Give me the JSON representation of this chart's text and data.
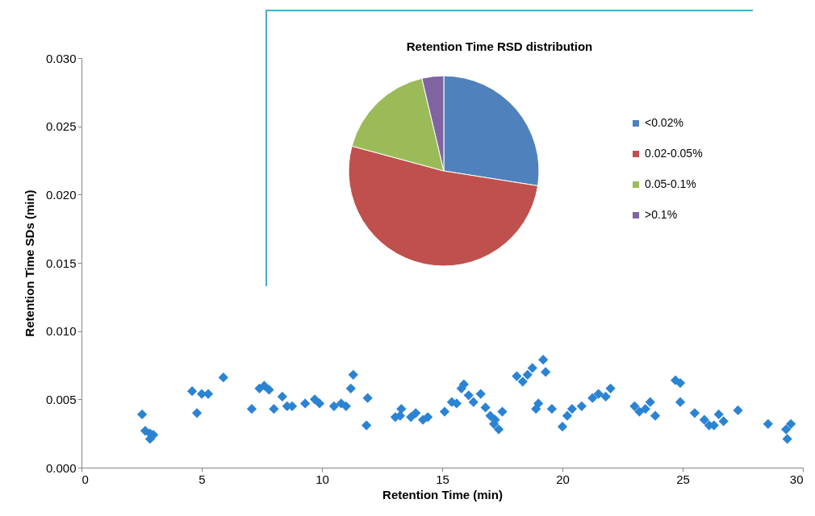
{
  "chart_data": [
    {
      "type": "scatter",
      "xlabel": "Retention Time (min)",
      "ylabel": "Retention Time SDs (min)",
      "marker": "diamond",
      "grid": false,
      "legend": false,
      "xlim": [
        0,
        30
      ],
      "xticks": [
        0,
        5,
        10,
        15,
        20,
        25,
        30
      ],
      "ylim": [
        0,
        0.03
      ],
      "yticks": [
        {
          "value": 0,
          "label": "0.000"
        },
        {
          "value": 0.005,
          "label": "0.005"
        },
        {
          "value": 0.01,
          "label": "0.010"
        },
        {
          "value": 0.015,
          "label": "0.015"
        },
        {
          "value": 0.02,
          "label": "0.020"
        },
        {
          "value": 0.025,
          "label": "0.025"
        },
        {
          "value": 0.03,
          "label": "0.030"
        }
      ],
      "series": [
        {
          "color": "#2b83d3",
          "x": [
            2.52,
            2.65,
            2.85,
            2.85,
            2.99,
            4.6,
            4.8,
            5.0,
            5.27,
            5.9,
            7.08,
            7.4,
            7.6,
            7.8,
            8.0,
            8.35,
            8.55,
            8.76,
            9.3,
            9.7,
            9.9,
            10.5,
            10.8,
            11.0,
            11.2,
            11.3,
            11.85,
            11.9,
            13.05,
            13.25,
            13.3,
            13.7,
            13.9,
            14.2,
            14.4,
            15.1,
            15.4,
            15.6,
            15.8,
            15.9,
            16.1,
            16.3,
            16.6,
            16.8,
            17.0,
            17.15,
            17.2,
            17.35,
            17.5,
            18.1,
            18.35,
            18.55,
            18.75,
            18.9,
            19.0,
            19.2,
            19.3,
            19.56,
            20.0,
            20.2,
            20.4,
            20.8,
            21.25,
            21.5,
            21.8,
            22.0,
            23.0,
            23.2,
            23.45,
            23.65,
            23.86,
            24.7,
            24.9,
            24.9,
            25.5,
            25.9,
            26.1,
            26.3,
            26.5,
            26.7,
            27.3,
            28.55,
            29.3,
            29.35,
            29.5
          ],
          "values": [
            0.0039,
            0.0027,
            0.0025,
            0.0021,
            0.0024,
            0.0056,
            0.004,
            0.0054,
            0.0054,
            0.0066,
            0.0043,
            0.0058,
            0.006,
            0.0057,
            0.0043,
            0.0052,
            0.0045,
            0.0045,
            0.0047,
            0.005,
            0.0047,
            0.0045,
            0.0047,
            0.0045,
            0.0058,
            0.0068,
            0.0031,
            0.0051,
            0.0037,
            0.0038,
            0.0043,
            0.0037,
            0.004,
            0.0035,
            0.0037,
            0.0041,
            0.0048,
            0.0047,
            0.0058,
            0.0061,
            0.0053,
            0.0048,
            0.0054,
            0.0044,
            0.0038,
            0.0032,
            0.0035,
            0.0028,
            0.0041,
            0.0067,
            0.0063,
            0.0068,
            0.0073,
            0.0043,
            0.0047,
            0.0079,
            0.007,
            0.0043,
            0.003,
            0.0038,
            0.0043,
            0.0045,
            0.0051,
            0.0054,
            0.0052,
            0.0058,
            0.0045,
            0.0041,
            0.0043,
            0.0048,
            0.0038,
            0.0064,
            0.0062,
            0.0048,
            0.004,
            0.0035,
            0.0031,
            0.0031,
            0.0039,
            0.0034,
            0.0042,
            0.0032,
            0.0028,
            0.0021,
            0.0032
          ]
        }
      ]
    },
    {
      "type": "pie",
      "title": "Retention Time RSD distribution",
      "legend": "right",
      "categories": [
        "<0.02%",
        "0.02-0.05%",
        "0.05-0.1%",
        ">0.1%"
      ],
      "values": [
        27.5,
        51.7,
        17.1,
        3.7
      ],
      "colors": [
        "#4f81bd",
        "#c0504d",
        "#9bbb59",
        "#8064a2"
      ]
    }
  ]
}
